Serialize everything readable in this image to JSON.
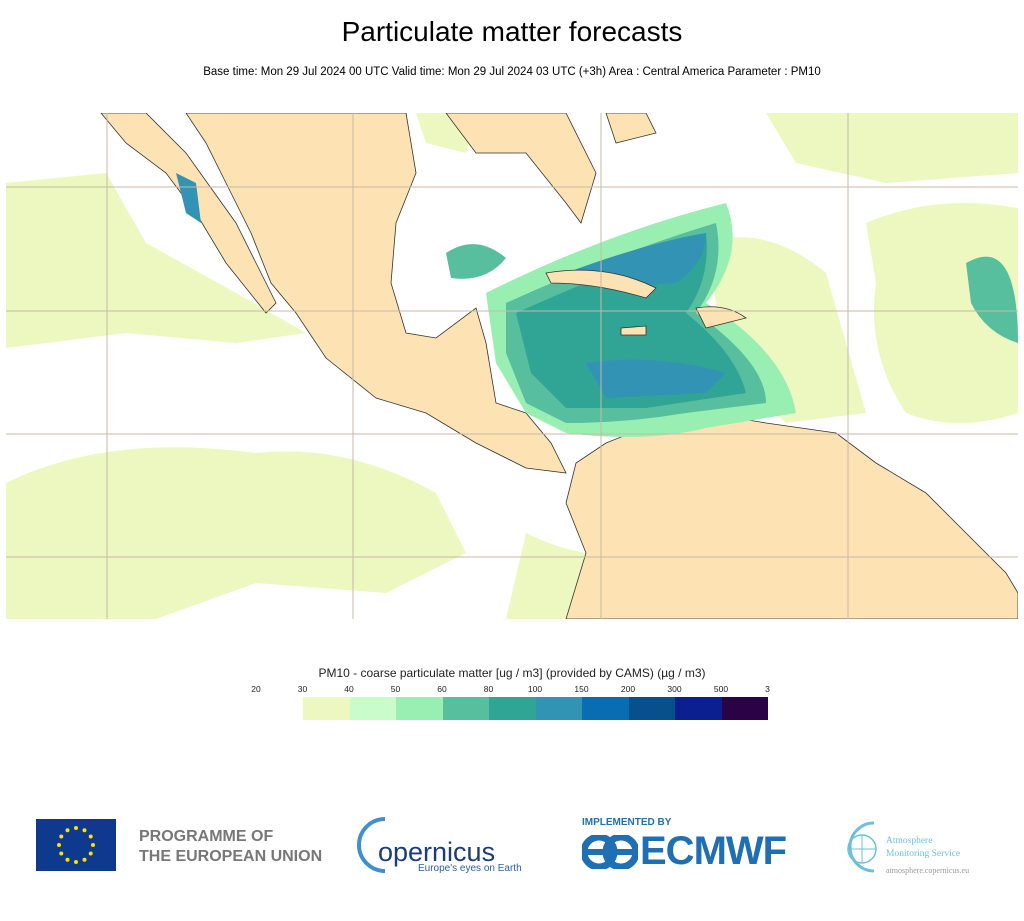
{
  "header": {
    "title": "Particulate matter forecasts",
    "subtitle": "Base time: Mon 29 Jul 2024 00 UTC Valid time: Mon 29 Jul 2024 03 UTC (+3h) Area : Central America Parameter : PM10"
  },
  "map": {
    "area": "Central America",
    "colors": {
      "land": "#fde3b4",
      "ocean": "#ffffff",
      "grid": "#c8b9a6",
      "coast": "#333333"
    }
  },
  "legend": {
    "title": "PM10 - coarse particulate matter [ug / m3] (provided by CAMS) (µg / m3)",
    "ticks": [
      "20",
      "30",
      "40",
      "50",
      "60",
      "80",
      "100",
      "150",
      "200",
      "300",
      "500",
      "3"
    ],
    "colors": [
      "#edf8c0",
      "#c9fbcb",
      "#99eeb2",
      "#57bf9d",
      "#30a595",
      "#3293b4",
      "#0a6db2",
      "#08508c",
      "#0b1f8f",
      "#2a0245"
    ]
  },
  "footer": {
    "eu_line1": "PROGRAMME OF",
    "eu_line2": "THE EUROPEAN UNION",
    "copernicus": "opernicus",
    "copernicus_tagline": "Europe's eyes on Earth",
    "implemented_by": "IMPLEMENTED BY",
    "ecmwf": "ECMWF",
    "cams_line1": "Atmosphere",
    "cams_line2": "Monitoring Service",
    "cams_url": "atmosphere.copernicus.eu"
  }
}
